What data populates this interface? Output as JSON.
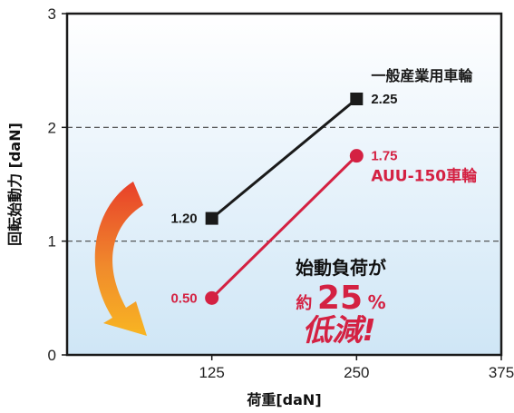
{
  "chart_data": {
    "type": "line",
    "xlabel": "荷重[daN]",
    "ylabel": "回転始動力 [daN]",
    "xlim": [
      0,
      375
    ],
    "ylim": [
      0,
      3
    ],
    "x_ticks": [
      125,
      250,
      375
    ],
    "x_tick_labels": [
      "125",
      "250",
      "375"
    ],
    "y_ticks": [
      0,
      1,
      2,
      3
    ],
    "y_tick_labels": [
      "0",
      "1",
      "2",
      "3"
    ],
    "grid": "dashed horizontal at 1 and 2",
    "background": "gradient white to light blue",
    "series": [
      {
        "name": "一般産業用車輪",
        "color": "#1a1a1a",
        "marker": "square",
        "points": [
          {
            "x": 125,
            "y": 1.2,
            "label": "1.20"
          },
          {
            "x": 250,
            "y": 2.25,
            "label": "2.25"
          }
        ]
      },
      {
        "name": "AUU-150車輪",
        "color": "#d42142",
        "marker": "circle",
        "points": [
          {
            "x": 125,
            "y": 0.5,
            "label": "0.50"
          },
          {
            "x": 250,
            "y": 1.75,
            "label": "1.75"
          }
        ]
      }
    ],
    "annotations": {
      "callout_line1": "始動負荷が",
      "callout_prefix": "約",
      "callout_value": "25",
      "callout_unit": "%",
      "callout_line3": "低減!",
      "arrow": "curved orange-to-yellow arrow pointing down-right"
    }
  }
}
